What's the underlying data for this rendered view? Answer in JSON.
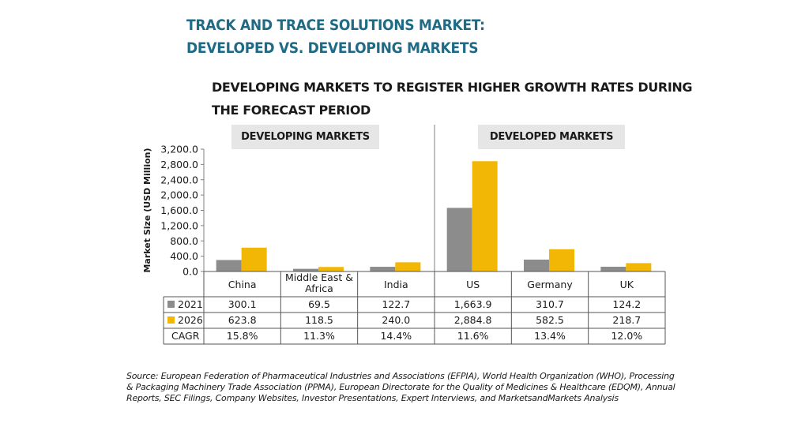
{
  "title_line1": "TRACK AND TRACE SOLUTIONS MARKET:",
  "title_line2": "DEVELOPED VS. DEVELOPING MARKETS",
  "subtitle_line1": "DEVELOPING MARKETS TO REGISTER HIGHER GROWTH RATES DURING",
  "subtitle_line2": "THE FORECAST PERIOD",
  "groups": [
    "DEVELOPING MARKETS",
    "DEVELOPED MARKETS"
  ],
  "source": "Source: European Federation of Pharmaceutical Industries and Associations (EFPIA), World Health Organization (WHO), Processing & Packaging Machinery Trade Association (PPMA), European Directorate for the Quality of Medicines & Healthcare (EDQM), Annual Reports, SEC Filings, Company Websites, Investor Presentations, Expert Interviews, and MarketsandMarkets Analysis",
  "colors": {
    "2021": "#8c8c8c",
    "2026": "#f2b705",
    "title": "#1f6b86"
  },
  "chart_data": {
    "type": "bar",
    "ylabel": "Market Size (USD Million)",
    "ylim": [
      0,
      3200
    ],
    "yticks": [
      "0.0",
      "400.0",
      "800.0",
      "1,200.0",
      "1,600.0",
      "2,000.0",
      "2,400.0",
      "2,800.0",
      "3,200.0"
    ],
    "ytick_values": [
      0,
      400,
      800,
      1200,
      1600,
      2000,
      2400,
      2800,
      3200
    ],
    "categories": [
      "China",
      "Middle East & Africa",
      "India",
      "US",
      "Germany",
      "UK"
    ],
    "category_labels": [
      [
        "China"
      ],
      [
        "Middle East &",
        "Africa"
      ],
      [
        "India"
      ],
      [
        "US"
      ],
      [
        "Germany"
      ],
      [
        "UK"
      ]
    ],
    "series": [
      {
        "name": "2021",
        "values": [
          300.1,
          69.5,
          122.7,
          1663.9,
          310.7,
          124.2
        ],
        "labels": [
          "300.1",
          "69.5",
          "122.7",
          "1,663.9",
          "310.7",
          "124.2"
        ]
      },
      {
        "name": "2026",
        "values": [
          623.8,
          118.5,
          240.0,
          2884.8,
          582.5,
          218.7
        ],
        "labels": [
          "623.8",
          "118.5",
          "240.0",
          "2,884.8",
          "582.5",
          "218.7"
        ]
      }
    ],
    "cagr_label": "CAGR",
    "cagr": [
      "15.8%",
      "11.3%",
      "14.4%",
      "11.6%",
      "13.4%",
      "12.0%"
    ]
  }
}
